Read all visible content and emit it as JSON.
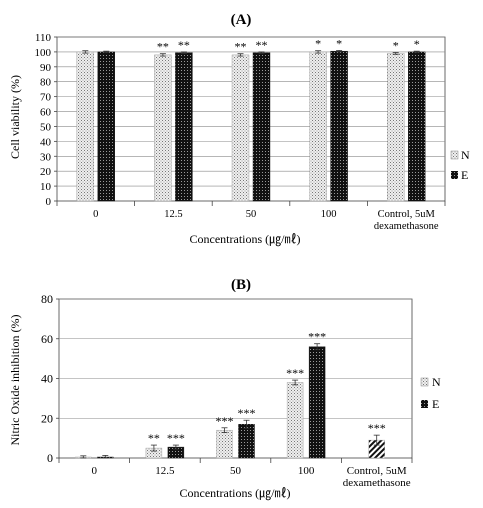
{
  "chart_data": [
    {
      "panel": "(A)",
      "type": "bar",
      "title": "(A)",
      "xlabel": "Concentrations (㎍/㎖)",
      "ylabel": "Cell viability (%)",
      "ylim": [
        0,
        110
      ],
      "yticks": [
        0,
        10,
        20,
        30,
        40,
        50,
        60,
        70,
        80,
        90,
        100,
        110
      ],
      "categories": [
        "0",
        "12.5",
        "50",
        "100",
        "Control, 5uM\ndexamethasone"
      ],
      "series": [
        {
          "name": "N",
          "values": [
            100,
            98,
            98,
            100,
            99
          ],
          "errors": [
            0.8,
            0.8,
            0.8,
            0.8,
            0.6
          ],
          "color": "#d2d2d2",
          "marks": [
            "",
            "**",
            "**",
            "*",
            "*"
          ]
        },
        {
          "name": "E",
          "values": [
            100,
            99.5,
            99.5,
            100.5,
            100
          ],
          "errors": [
            0.5,
            0.5,
            0.5,
            0.5,
            0.5
          ],
          "color": "#1a1a1a",
          "marks": [
            "",
            "**",
            "**",
            "*",
            "*"
          ]
        }
      ],
      "grid": true,
      "legend": "right"
    },
    {
      "panel": "(B)",
      "type": "bar",
      "title": "(B)",
      "xlabel": "Concentrations (㎍/㎖)",
      "ylabel": "Nitric Oxide inhibition  (%)",
      "ylim": [
        0,
        80
      ],
      "yticks": [
        0,
        20,
        40,
        60,
        80
      ],
      "categories": [
        "0",
        "12.5",
        "50",
        "100",
        "Control, 5uM\ndexamethasone"
      ],
      "series": [
        {
          "name": "N",
          "values": [
            0.5,
            5,
            14,
            38,
            9
          ],
          "errors": [
            0.6,
            1.5,
            1.2,
            1.2,
            2.5
          ],
          "color": "#d2d2d2",
          "marks": [
            "",
            "**",
            "***",
            "***",
            "***"
          ]
        },
        {
          "name": "E",
          "values": [
            0.5,
            5.5,
            17,
            56,
            null
          ],
          "errors": [
            0.8,
            1.0,
            2.0,
            1.5,
            null
          ],
          "color": "#1a1a1a",
          "marks": [
            "",
            "***",
            "***",
            "***",
            ""
          ]
        }
      ],
      "control_bar_pattern": "diagonal-hatch",
      "grid": true,
      "legend": "right"
    }
  ]
}
